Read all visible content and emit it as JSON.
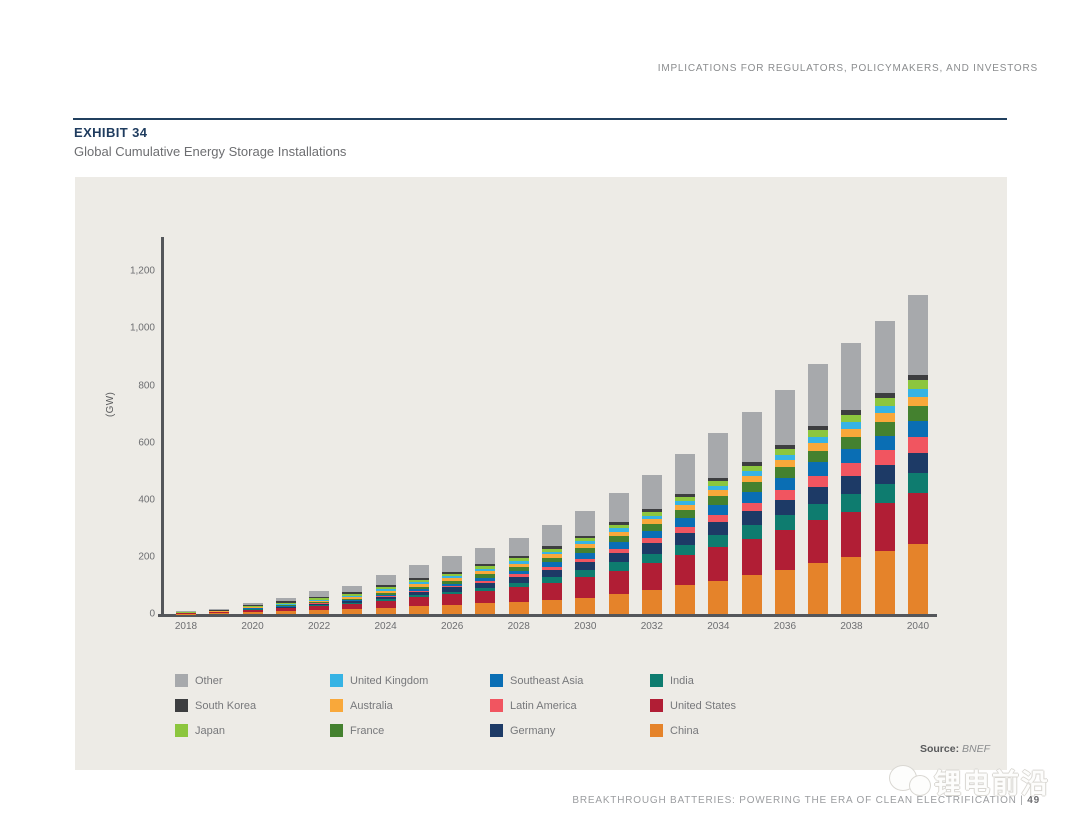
{
  "page": {
    "running_head": "IMPLICATIONS FOR REGULATORS, POLICYMAKERS, AND INVESTORS",
    "exhibit_label": "EXHIBIT 34",
    "exhibit_title": "Global Cumulative Energy Storage Installations",
    "source_label": "Source:",
    "source_value": "BNEF",
    "footer_text": "BREAKTHROUGH BATTERIES: POWERING THE ERA OF CLEAN ELECTRIFICATION |",
    "page_number": "49",
    "watermark_text": "锂电前沿"
  },
  "colors": {
    "panel_bg": "#edebe6",
    "rule": "#21405f",
    "axis": "#54565a",
    "accent_navy": "#1f3c5f"
  },
  "chart_data": {
    "type": "bar",
    "stacked": true,
    "title": "Global Cumulative Energy Storage Installations",
    "ylabel": "(GW)",
    "ylim": [
      0,
      1320
    ],
    "yticks": [
      0,
      200,
      400,
      600,
      800,
      1000,
      1200
    ],
    "ytick_labels": [
      "0",
      "200",
      "400",
      "600",
      "800",
      "1,000",
      "1,200"
    ],
    "grid": false,
    "legend_position": "bottom",
    "x": [
      2018,
      2019,
      2020,
      2021,
      2022,
      2023,
      2024,
      2025,
      2026,
      2027,
      2028,
      2029,
      2030,
      2031,
      2032,
      2033,
      2034,
      2035,
      2036,
      2037,
      2038,
      2039,
      2040
    ],
    "x_tick_labels": [
      "2018",
      "2020",
      "2022",
      "2024",
      "2026",
      "2028",
      "2030",
      "2032",
      "2034",
      "2036",
      "2038",
      "2040"
    ],
    "totals_gw": [
      9,
      17,
      40,
      58,
      80,
      100,
      138,
      172,
      202,
      230,
      268,
      313,
      360,
      424,
      487,
      560,
      633,
      706,
      786,
      877,
      950,
      1026,
      1117
    ],
    "series": [
      {
        "name": "China",
        "color": "#e5832a",
        "values": [
          1,
          3,
          8,
          11,
          14,
          17,
          22,
          27,
          32,
          37,
          43,
          50,
          57,
          70,
          84,
          100,
          117,
          135,
          155,
          177,
          198,
          221,
          245
        ]
      },
      {
        "name": "United States",
        "color": "#b11e35",
        "values": [
          1,
          3,
          7,
          10,
          14,
          18,
          25,
          31,
          37,
          43,
          51,
          60,
          71,
          82,
          93,
          105,
          117,
          128,
          139,
          151,
          160,
          169,
          178
        ]
      },
      {
        "name": "India",
        "color": "#0e7c6f",
        "values": [
          0,
          0,
          1,
          1,
          2,
          3,
          5,
          7,
          9,
          12,
          16,
          20,
          25,
          29,
          33,
          38,
          43,
          48,
          53,
          58,
          62,
          66,
          70
        ]
      },
      {
        "name": "Germany",
        "color": "#1d3a66",
        "values": [
          1,
          1,
          2,
          3,
          5,
          6,
          9,
          12,
          15,
          18,
          21,
          25,
          29,
          33,
          37,
          41,
          45,
          49,
          54,
          59,
          63,
          67,
          72
        ]
      },
      {
        "name": "Latin America",
        "color": "#f15560",
        "values": [
          0,
          0,
          1,
          1,
          2,
          2,
          3,
          4,
          5,
          7,
          8,
          10,
          12,
          15,
          18,
          22,
          26,
          30,
          35,
          40,
          45,
          50,
          56
        ]
      },
      {
        "name": "Southeast Asia",
        "color": "#0a6eb4",
        "values": [
          0,
          0,
          1,
          1,
          2,
          3,
          4,
          6,
          8,
          10,
          13,
          17,
          21,
          24,
          27,
          31,
          35,
          38,
          42,
          46,
          49,
          52,
          55
        ]
      },
      {
        "name": "France",
        "color": "#44812f",
        "values": [
          0,
          1,
          2,
          3,
          4,
          5,
          7,
          9,
          11,
          13,
          14,
          16,
          18,
          21,
          24,
          27,
          30,
          33,
          37,
          41,
          44,
          48,
          52
        ]
      },
      {
        "name": "Australia",
        "color": "#f9a83a",
        "values": [
          1,
          1,
          2,
          3,
          4,
          5,
          7,
          8,
          9,
          10,
          11,
          12,
          13,
          15,
          16,
          18,
          20,
          22,
          24,
          26,
          28,
          30,
          32
        ]
      },
      {
        "name": "United Kingdom",
        "color": "#36b3e4",
        "values": [
          1,
          1,
          2,
          3,
          4,
          5,
          6,
          7,
          8,
          8,
          9,
          9,
          10,
          11,
          13,
          14,
          16,
          17,
          19,
          21,
          23,
          25,
          27
        ]
      },
      {
        "name": "Japan",
        "color": "#8cc63e",
        "values": [
          1,
          2,
          3,
          4,
          5,
          6,
          7,
          8,
          8,
          9,
          9,
          10,
          10,
          12,
          13,
          15,
          17,
          19,
          21,
          24,
          26,
          28,
          31
        ]
      },
      {
        "name": "South Korea",
        "color": "#3d3e40",
        "values": [
          2,
          3,
          4,
          5,
          5,
          6,
          6,
          7,
          7,
          7,
          8,
          8,
          8,
          9,
          10,
          11,
          12,
          13,
          14,
          16,
          17,
          18,
          19
        ]
      },
      {
        "name": "Other",
        "color": "#a7a9ac",
        "values": [
          1,
          2,
          7,
          13,
          19,
          24,
          37,
          46,
          53,
          56,
          65,
          76,
          86,
          103,
          119,
          138,
          155,
          174,
          193,
          218,
          235,
          252,
          280
        ]
      }
    ],
    "legend_order": [
      "Other",
      "United Kingdom",
      "Southeast Asia",
      "India",
      "South Korea",
      "Australia",
      "Latin America",
      "United States",
      "Japan",
      "France",
      "Germany",
      "China"
    ]
  }
}
